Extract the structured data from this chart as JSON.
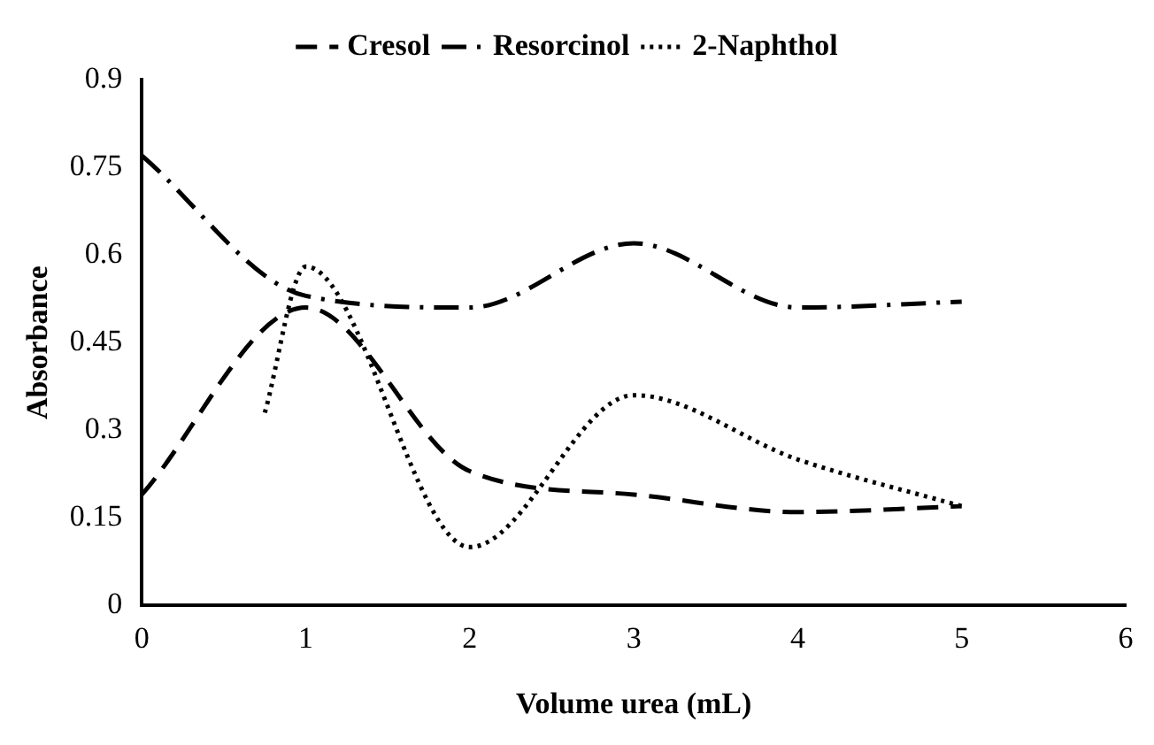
{
  "chart_data": {
    "type": "line",
    "xlabel": "Volume urea (mL)",
    "ylabel": "Absorbance",
    "xlim": [
      0,
      6
    ],
    "xticks": [
      0,
      1,
      2,
      3,
      4,
      5,
      6
    ],
    "ylim": [
      0,
      0.9
    ],
    "yticks": [
      0,
      0.15,
      0.3,
      0.45,
      0.6,
      0.75,
      0.9
    ],
    "grid": false,
    "legend": "top",
    "marker": "none",
    "series": [
      {
        "name": "Cresol",
        "color": "#000000",
        "line_style": "dashed",
        "x": [
          0,
          1,
          2,
          3,
          4,
          5
        ],
        "values": [
          0.19,
          0.51,
          0.23,
          0.19,
          0.16,
          0.17
        ]
      },
      {
        "name": "Resorcinol",
        "color": "#000000",
        "line_style": "dashdot",
        "x": [
          0,
          1,
          2,
          3,
          4,
          5
        ],
        "values": [
          0.77,
          0.53,
          0.51,
          0.62,
          0.51,
          0.52
        ]
      },
      {
        "name": "2-Naphthol",
        "color": "#000000",
        "line_style": "dotted",
        "x": [
          0.75,
          1,
          2,
          3,
          4,
          5
        ],
        "values": [
          0.33,
          0.58,
          0.1,
          0.36,
          0.25,
          0.17
        ]
      }
    ]
  }
}
